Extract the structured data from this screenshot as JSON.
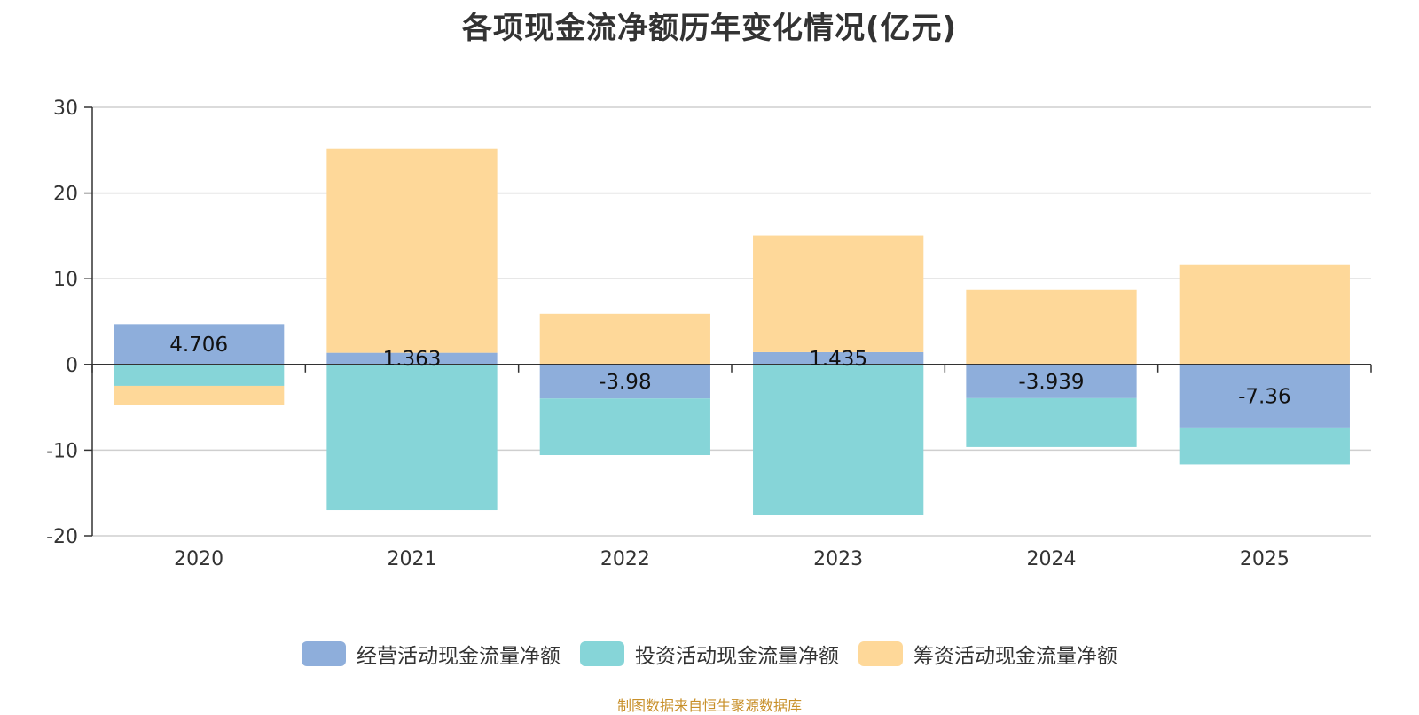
{
  "chart_data": {
    "type": "bar",
    "stacked": true,
    "title": "各项现金流净额历年变化情况(亿元)",
    "categories": [
      "2020",
      "2021",
      "2022",
      "2023",
      "2024",
      "2025"
    ],
    "series": [
      {
        "name": "经营活动现金流量净额",
        "color": "#8eaedb",
        "values": [
          4.706,
          1.363,
          -3.98,
          1.435,
          -3.939,
          -7.36
        ],
        "labels": [
          "4.706",
          "1.363",
          "-3.98",
          "1.435",
          "-3.939",
          "-7.36"
        ]
      },
      {
        "name": "投资活动现金流量净额",
        "color": "#86d5d8",
        "values": [
          -2.5,
          -17.0,
          -6.6,
          -17.6,
          -5.7,
          -4.3
        ]
      },
      {
        "name": "筹资活动现金流量净额",
        "color": "#fed899",
        "values": [
          -2.2,
          23.8,
          5.9,
          13.6,
          8.7,
          11.6
        ]
      }
    ],
    "ylim": [
      -20,
      30
    ],
    "yticks": [
      30,
      20,
      10,
      0,
      -10,
      -20
    ],
    "ytick_labels": [
      "30",
      "20",
      "10",
      "0",
      "-10",
      "-20"
    ],
    "xlabel": "",
    "ylabel": "",
    "grid": true,
    "legend": "bottom-center"
  },
  "footer": {
    "source": "制图数据来自恒生聚源数据库"
  }
}
